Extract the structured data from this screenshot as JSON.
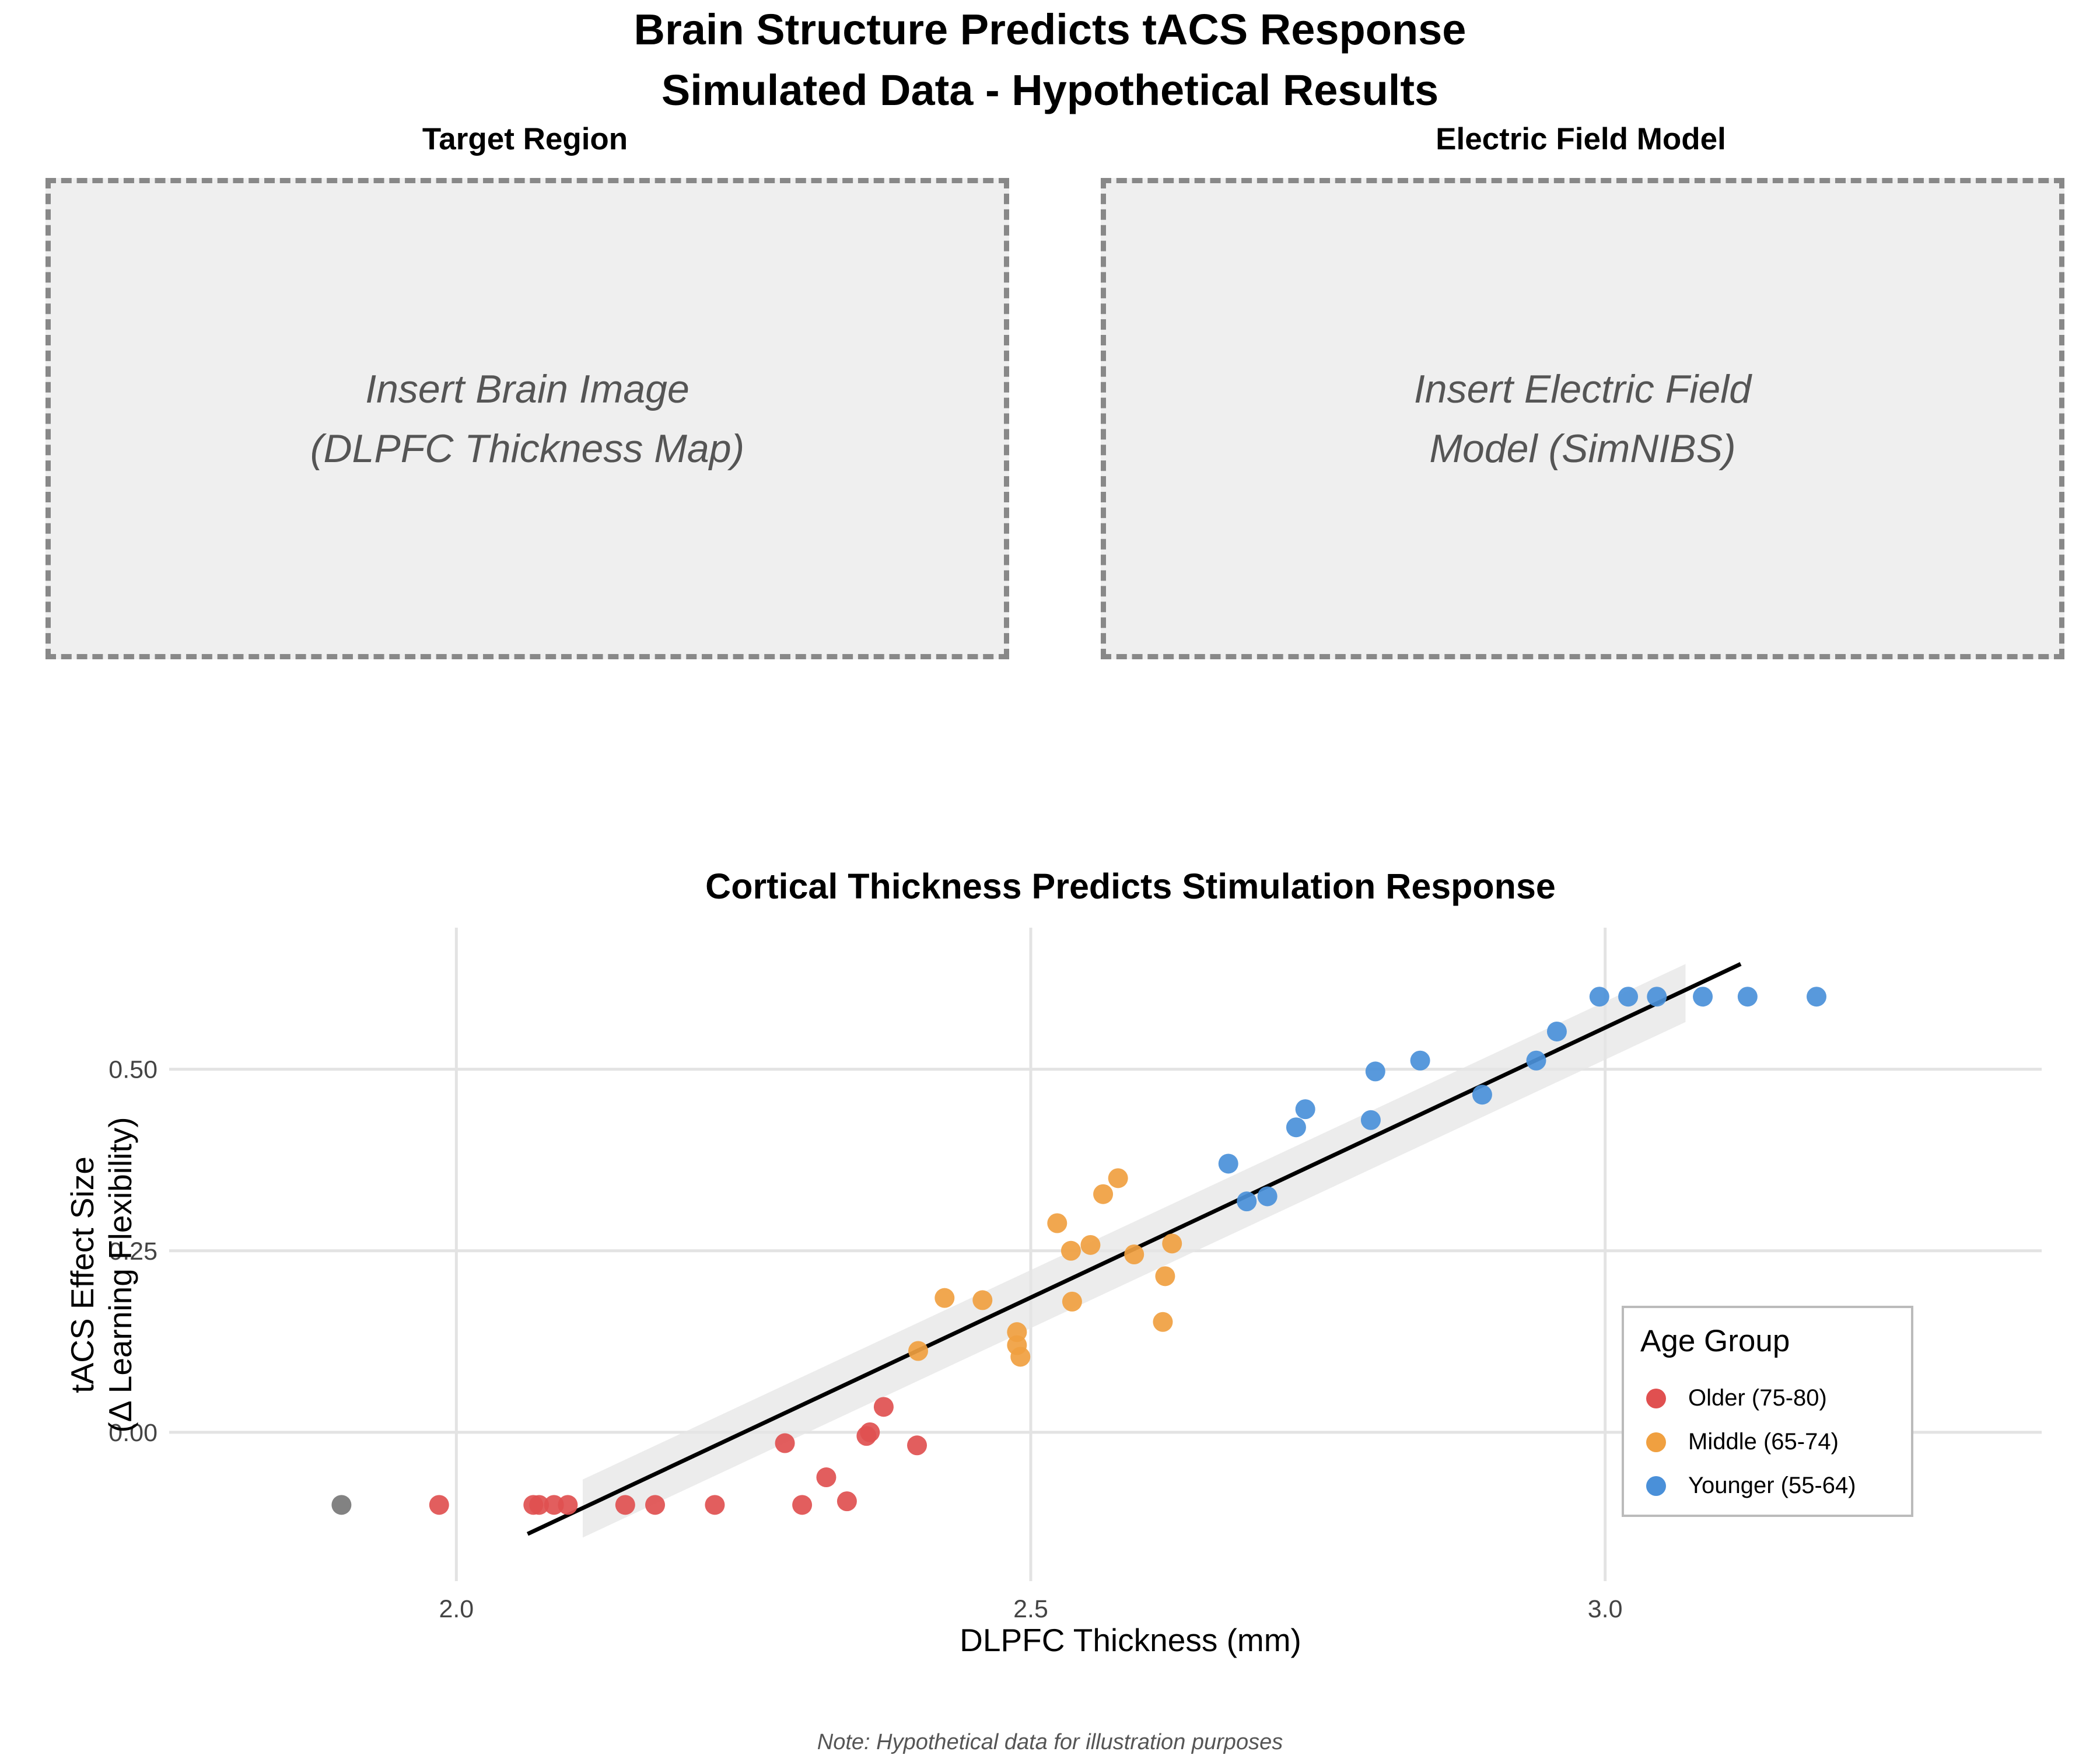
{
  "title": "Brain Structure Predicts tACS Response",
  "subtitle": "Simulated Data - Hypothetical Results",
  "panels": {
    "left": {
      "title": "Target Region",
      "text": "Insert Brain Image\n(DLPFC Thickness Map)"
    },
    "right": {
      "title": "Electric Field Model",
      "text": "Insert Electric Field\nModel (SimNIBS)"
    }
  },
  "note": "Note: Hypothetical data for illustration purposes",
  "chart_data": {
    "type": "scatter",
    "title": "Cortical Thickness Predicts Stimulation Response",
    "xlabel": "DLPFC Thickness (mm)",
    "ylabel_lines": [
      "tACS Effect Size",
      "(Δ Learning Flexibility)"
    ],
    "xlim": [
      1.75,
      3.38
    ],
    "ylim": [
      -0.205,
      0.695
    ],
    "x_ticks": [
      2.0,
      2.5,
      3.0
    ],
    "x_tick_labels": [
      "2.0",
      "2.5",
      "3.0"
    ],
    "y_ticks": [
      0.0,
      0.25,
      0.5
    ],
    "y_tick_labels": [
      "0.00",
      "0.25",
      "0.50"
    ],
    "grid": true,
    "legend": {
      "title": "Age Group",
      "position": "bottom-right"
    },
    "series": [
      {
        "name": "Older (75-80)",
        "color": "#e05050",
        "x": [
          1.985,
          2.067,
          2.072,
          2.085,
          2.097,
          2.147,
          2.173,
          2.225,
          2.286,
          2.301,
          2.322,
          2.34,
          2.357,
          2.36,
          2.372,
          2.401
        ],
        "y": [
          -0.1,
          -0.1,
          -0.1,
          -0.1,
          -0.1,
          -0.1,
          -0.1,
          -0.1,
          -0.015,
          -0.1,
          -0.062,
          -0.095,
          -0.005,
          0.0,
          0.035,
          -0.018
        ]
      },
      {
        "name": "Middle (65-74)",
        "color": "#f0a040",
        "x": [
          2.402,
          2.425,
          2.458,
          2.488,
          2.488,
          2.491,
          2.523,
          2.535,
          2.536,
          2.552,
          2.563,
          2.576,
          2.59,
          2.615,
          2.617,
          2.623
        ],
        "y": [
          0.112,
          0.185,
          0.182,
          0.12,
          0.138,
          0.104,
          0.288,
          0.25,
          0.18,
          0.258,
          0.328,
          0.35,
          0.245,
          0.152,
          0.215,
          0.26
        ]
      },
      {
        "name": "Younger (55-64)",
        "color": "#4a90d9",
        "x": [
          2.672,
          2.688,
          2.706,
          2.731,
          2.739,
          2.796,
          2.8,
          2.839,
          2.893,
          2.94,
          2.958,
          2.995,
          3.02,
          3.045,
          3.085,
          3.124,
          3.184
        ],
        "y": [
          0.37,
          0.318,
          0.325,
          0.42,
          0.445,
          0.43,
          0.497,
          0.512,
          0.465,
          0.512,
          0.552,
          0.6,
          0.6,
          0.6,
          0.6,
          0.6,
          0.6
        ]
      },
      {
        "name": "",
        "color": "#777777",
        "x": [
          1.9
        ],
        "y": [
          -0.1
        ]
      }
    ],
    "fit_line": {
      "x": [
        2.062,
        3.118
      ],
      "y": [
        -0.14,
        0.645
      ]
    },
    "confidence_band": {
      "x": [
        2.11,
        3.07
      ],
      "y_upper": [
        -0.065,
        0.645
      ],
      "y_lower": [
        -0.145,
        0.565
      ]
    }
  }
}
